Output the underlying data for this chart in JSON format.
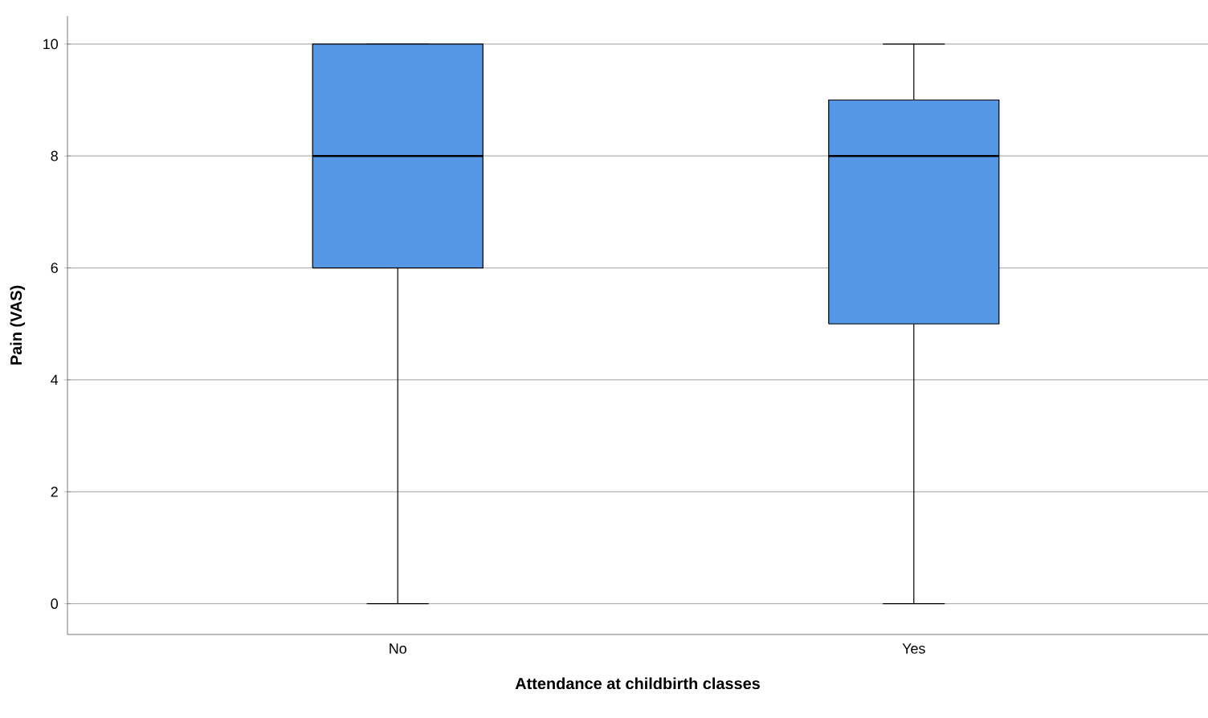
{
  "chart_data": {
    "type": "box",
    "xlabel": "Attendance at childbirth classes",
    "ylabel": "Pain (VAS)",
    "categories": [
      "No",
      "Yes"
    ],
    "ylim": [
      -0.55,
      10.5
    ],
    "yticks": [
      0,
      2,
      4,
      6,
      8,
      10
    ],
    "grid": "y",
    "series": [
      {
        "color": "#5597e4",
        "boxes": [
          {
            "low": 0,
            "q1": 6,
            "median": 8,
            "q3": 10,
            "high": 10
          },
          {
            "low": 0,
            "q1": 5,
            "median": 8,
            "q3": 9,
            "high": 10
          }
        ]
      }
    ]
  }
}
